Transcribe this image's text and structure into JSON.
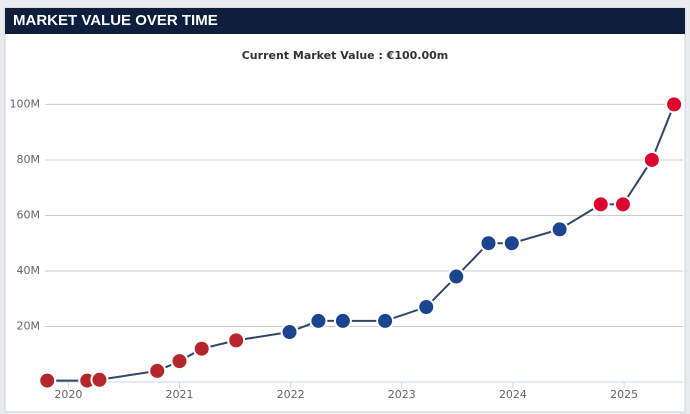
{
  "chart_data": {
    "type": "line",
    "title": "MARKET VALUE OVER TIME",
    "subtitle": "Current Market Value : €100.00m",
    "x": [
      2019.81,
      2020.17,
      2020.28,
      2020.8,
      2021.0,
      2021.2,
      2021.51,
      2021.99,
      2022.25,
      2022.47,
      2022.85,
      2023.22,
      2023.49,
      2023.78,
      2023.99,
      2024.42,
      2024.79,
      2024.99,
      2025.25,
      2025.45
    ],
    "series": [
      {
        "color": "#2f4868",
        "values": [
          0.5,
          0.5,
          0.8,
          4,
          7.5,
          12,
          15,
          18,
          22,
          22,
          22,
          27,
          38,
          50,
          50,
          55,
          64,
          64,
          80,
          100
        ],
        "marker_colors": [
          "#b5262c",
          "#b5262c",
          "#b5262c",
          "#b5262c",
          "#b5262c",
          "#b5262c",
          "#b5262c",
          "#1b458f",
          "#1b458f",
          "#1b458f",
          "#1b458f",
          "#1b458f",
          "#1b458f",
          "#1b458f",
          "#1b458f",
          "#1b458f",
          "#dc052d",
          "#dc052d",
          "#dc052d",
          "#dc052d"
        ]
      }
    ],
    "xlim": [
      2019.79,
      2025.53
    ],
    "xticks": [
      2020,
      2021,
      2022,
      2023,
      2024,
      2025
    ],
    "ylim": [
      0,
      107
    ],
    "yticks": [
      {
        "value": 20,
        "label": "20M"
      },
      {
        "value": 40,
        "label": "40M"
      },
      {
        "value": 60,
        "label": "60M"
      },
      {
        "value": 80,
        "label": "80M"
      },
      {
        "value": 100,
        "label": "100M"
      }
    ],
    "grid": true
  }
}
